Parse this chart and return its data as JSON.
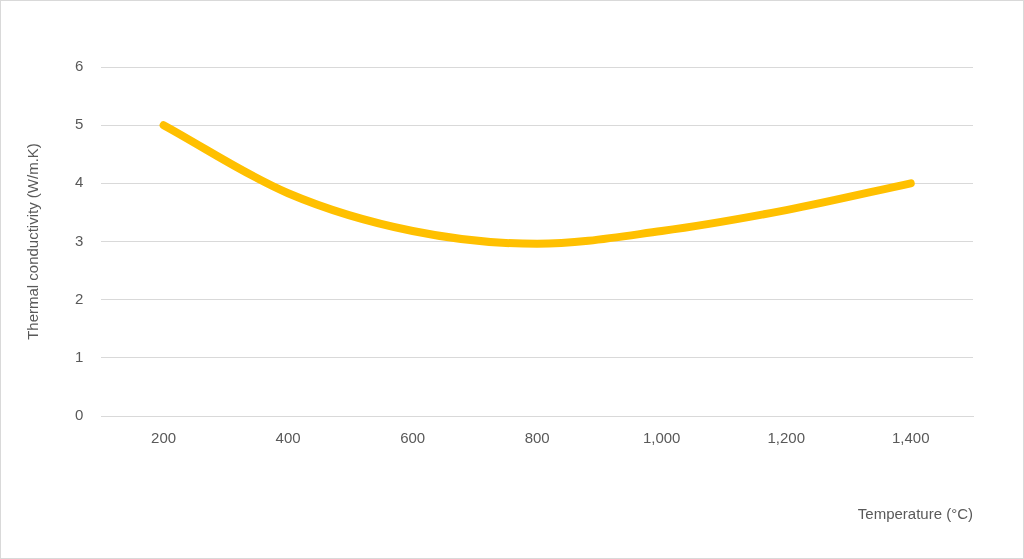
{
  "chart_data": {
    "type": "line",
    "xlabel": "Temperature (°C)",
    "ylabel": "Thermal conductivity (W/m.K)",
    "categories": [
      "200",
      "400",
      "600",
      "800",
      "1,000",
      "1,200",
      "1,400"
    ],
    "series": [
      {
        "color": "#ffc000",
        "values": [
          5,
          3.83,
          3.18,
          2.96,
          3.18,
          3.54,
          4
        ]
      }
    ],
    "ylim": [
      0,
      6
    ],
    "yticks": [
      0,
      1,
      2,
      3,
      4,
      5,
      6
    ],
    "grid": "y",
    "legend": false,
    "marker": "none",
    "line_style": "solid"
  }
}
